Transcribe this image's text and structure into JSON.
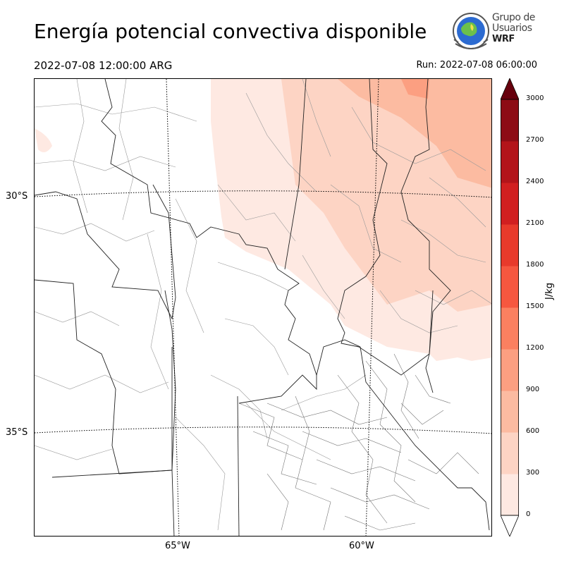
{
  "title": "Energía potencial convectiva disponible",
  "valid_time": "2022-07-08 12:00:00 ARG",
  "run_label": "Run: 2022-07-08 06:00:00",
  "logo": {
    "line1": "Grupo de",
    "line2": "Usuarios",
    "line3": "WRF"
  },
  "map": {
    "lat_labels": [
      "30°S",
      "35°S"
    ],
    "lon_labels": [
      "65°W",
      "60°W"
    ]
  },
  "colorbar": {
    "unit": "J/kg",
    "ticks": [
      "0",
      "300",
      "600",
      "900",
      "1200",
      "1500",
      "1800",
      "2100",
      "2400",
      "2700",
      "3000"
    ],
    "colors": [
      "#fee9e2",
      "#fdd4c4",
      "#fcbba1",
      "#fc9f81",
      "#fb8060",
      "#f6573f",
      "#e83a2b",
      "#d11f20",
      "#b3141a",
      "#8d0c15",
      "#67000d"
    ]
  }
}
